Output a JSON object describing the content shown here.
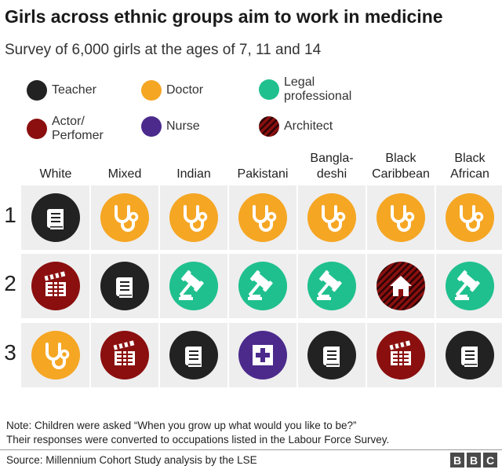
{
  "title": "Girls across ethnic groups aim to work in medicine",
  "subtitle": "Survey of 6,000 girls at the ages of 7, 11 and 14",
  "colors": {
    "teacher": "#222222",
    "doctor": "#f5a623",
    "legal": "#1fc08e",
    "actor": "#8b0f0f",
    "nurse": "#4b2a8c",
    "architect": "#8b0f0f",
    "band": "#eeeeee"
  },
  "legend": [
    {
      "key": "teacher",
      "label": "Teacher",
      "icon": "circle-black"
    },
    {
      "key": "doctor",
      "label": "Doctor",
      "icon": "circle-orange"
    },
    {
      "key": "legal",
      "label": "Legal\nprofessional",
      "icon": "circle-green"
    },
    {
      "key": "actor",
      "label": "Actor/\nPerfomer",
      "icon": "circle-darkred"
    },
    {
      "key": "nurse",
      "label": "Nurse",
      "icon": "circle-purple"
    },
    {
      "key": "architect",
      "label": "Architect",
      "icon": "circle-hatched-darkred"
    }
  ],
  "chart_data": {
    "type": "table",
    "title": "Girls across ethnic groups aim to work in medicine",
    "subtitle": "Survey of 6,000 girls at the ages of 7, 11 and 14",
    "columns": [
      "White",
      "Mixed",
      "Indian",
      "Pakistani",
      "Bangla-\ndeshi",
      "Black\nCaribbean",
      "Black\nAfrican"
    ],
    "row_labels": [
      "1",
      "2",
      "3"
    ],
    "rows": [
      [
        "teacher",
        "doctor",
        "doctor",
        "doctor",
        "doctor",
        "doctor",
        "doctor"
      ],
      [
        "actor",
        "teacher",
        "legal",
        "legal",
        "legal",
        "architect",
        "legal"
      ],
      [
        "doctor",
        "actor",
        "teacher",
        "nurse",
        "teacher",
        "actor",
        "teacher"
      ]
    ],
    "icons": {
      "teacher": "book-icon",
      "doctor": "stethoscope-icon",
      "legal": "gavel-icon",
      "actor": "clapperboard-icon",
      "nurse": "medical-cross-icon",
      "architect": "house-icon"
    }
  },
  "note": "Note: Children were asked “When you grow up what would you like to be?”\nTheir responses were converted to occupations listed in the Labour Force Survey.",
  "source": "Source: Millennium Cohort Study analysis by the LSE",
  "brand": [
    "B",
    "B",
    "C"
  ]
}
